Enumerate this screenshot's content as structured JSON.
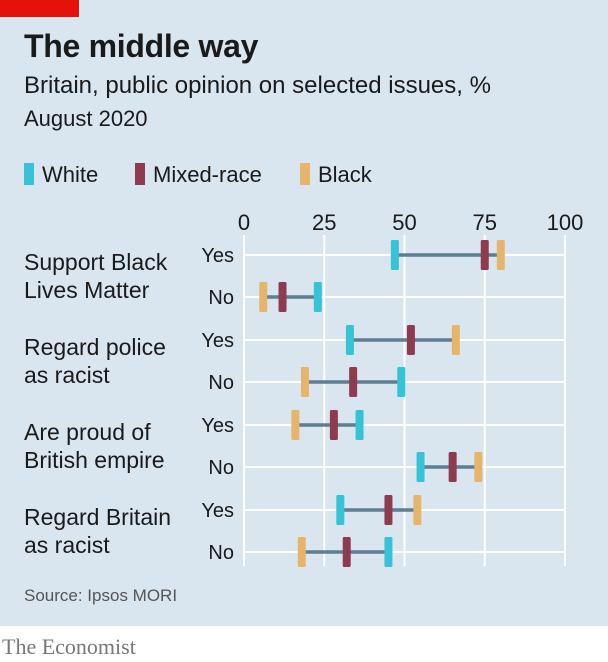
{
  "chart_data": {
    "type": "dot-range",
    "title": "The middle way",
    "subtitle": "Britain, public opinion on selected issues, %",
    "period": "August 2020",
    "source": "Source: Ipsos MORI",
    "xlim": [
      0,
      100
    ],
    "x_ticks": [
      0,
      25,
      50,
      75,
      100
    ],
    "series": [
      {
        "name": "White",
        "color": "#36c3d6"
      },
      {
        "name": "Mixed-race",
        "color": "#8f3b4f"
      },
      {
        "name": "Black",
        "color": "#e6b56b"
      }
    ],
    "categories": [
      {
        "label_lines": [
          "Support Black",
          "Lives Matter"
        ],
        "responses": [
          {
            "label": "Yes",
            "values": [
              47,
              75,
              80
            ]
          },
          {
            "label": "No",
            "values": [
              23,
              12,
              6
            ]
          }
        ]
      },
      {
        "label_lines": [
          "Regard police",
          "as racist"
        ],
        "responses": [
          {
            "label": "Yes",
            "values": [
              33,
              52,
              66
            ]
          },
          {
            "label": "No",
            "values": [
              49,
              34,
              19
            ]
          }
        ]
      },
      {
        "label_lines": [
          "Are proud of",
          "British empire"
        ],
        "responses": [
          {
            "label": "Yes",
            "values": [
              36,
              28,
              16
            ]
          },
          {
            "label": "No",
            "values": [
              55,
              65,
              73
            ]
          }
        ]
      },
      {
        "label_lines": [
          "Regard Britain",
          "as racist"
        ],
        "responses": [
          {
            "label": "Yes",
            "values": [
              30,
              45,
              54
            ]
          },
          {
            "label": "No",
            "values": [
              45,
              32,
              18
            ]
          }
        ]
      }
    ],
    "connector_color": "#5d7f91",
    "grid": true
  },
  "brand": "The Economist"
}
